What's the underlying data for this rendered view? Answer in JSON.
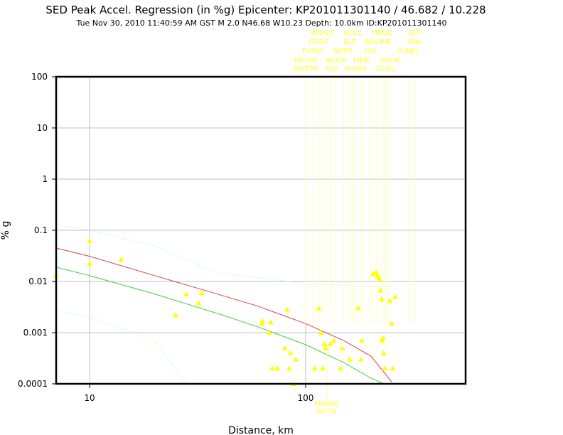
{
  "chart_data": {
    "type": "scatter",
    "title": "SED Peak Accel. Regression (in %g) Epicenter: KP201011301140 / 46.682 / 10.228",
    "subtitle": "Tue Nov 30, 2010 11:40:59 AM GST   M 2.0   N46.68 W10.23   Depth: 10.0km   ID:KP201011301140",
    "xlabel": "Distance, km",
    "ylabel": "% g",
    "x_scale": "log",
    "y_scale": "log",
    "xlim": [
      7,
      550
    ],
    "ylim": [
      0.0001,
      100
    ],
    "x_ticks": [
      "10",
      "100"
    ],
    "y_ticks": [
      "100",
      "10",
      "1",
      "0.1",
      "0.01",
      "0.001",
      "0.0001"
    ],
    "grid": true,
    "colors": {
      "frame": "#000000",
      "grid": "#c0c0c0",
      "points": "#ffff00",
      "station_label": "#ffff33",
      "median_curve": "#e04040",
      "fit_curve": "#40d040",
      "bound_curve": "#b0f0b0"
    },
    "series": [
      {
        "marker": "triangle",
        "points": [
          [
            7,
            0.013
          ],
          [
            10,
            0.062
          ],
          [
            10,
            0.022
          ],
          [
            14,
            0.027
          ],
          [
            25,
            0.0022
          ],
          [
            28,
            0.0057
          ],
          [
            32,
            0.0038
          ],
          [
            33,
            0.006
          ],
          [
            63,
            0.0017
          ],
          [
            63,
            0.0015
          ],
          [
            68,
            0.001
          ],
          [
            69,
            0.0016
          ],
          [
            70,
            0.0002
          ],
          [
            74,
            0.0002
          ],
          [
            80,
            0.0005
          ],
          [
            82,
            0.0028
          ],
          [
            84,
            0.0002
          ],
          [
            85,
            0.0004
          ],
          [
            88,
            0.0001
          ],
          [
            90,
            0.0003
          ],
          [
            110,
            0.0002
          ],
          [
            115,
            0.003
          ],
          [
            118,
            0.001
          ],
          [
            120,
            0.0002
          ],
          [
            122,
            0.0006
          ],
          [
            124,
            0.0005
          ],
          [
            130,
            0.0006
          ],
          [
            135,
            0.0007
          ],
          [
            145,
            0.0002
          ],
          [
            148,
            0.0005
          ],
          [
            160,
            0.0003
          ],
          [
            175,
            0.003
          ],
          [
            180,
            0.0003
          ],
          [
            182,
            0.0007
          ],
          [
            205,
            0.014
          ],
          [
            212,
            0.015
          ],
          [
            215,
            0.013
          ],
          [
            218,
            0.012
          ],
          [
            220,
            0.011
          ],
          [
            222,
            0.0067
          ],
          [
            225,
            0.0045
          ],
          [
            226,
            0.0007
          ],
          [
            228,
            0.0008
          ],
          [
            230,
            0.0004
          ],
          [
            232,
            0.0002
          ],
          [
            245,
            0.0042
          ],
          [
            250,
            0.0015
          ],
          [
            252,
            0.0002
          ],
          [
            260,
            0.005
          ]
        ]
      },
      {
        "name": "median",
        "style": "line",
        "points": [
          [
            7,
            0.045
          ],
          [
            10,
            0.031
          ],
          [
            20,
            0.013
          ],
          [
            40,
            0.0055
          ],
          [
            60,
            0.0033
          ],
          [
            100,
            0.0015
          ],
          [
            150,
            0.0007
          ],
          [
            200,
            0.00035
          ],
          [
            250,
            0.00011
          ]
        ]
      },
      {
        "name": "fit",
        "style": "line",
        "points": [
          [
            7,
            0.019
          ],
          [
            10,
            0.013
          ],
          [
            20,
            0.0057
          ],
          [
            40,
            0.0023
          ],
          [
            60,
            0.0013
          ],
          [
            100,
            0.00058
          ],
          [
            150,
            0.00026
          ],
          [
            200,
            0.00013
          ],
          [
            230,
            0.0001
          ]
        ]
      },
      {
        "name": "upper",
        "style": "dotted",
        "points": [
          [
            7,
            0.13
          ],
          [
            10,
            0.1
          ],
          [
            20,
            0.05
          ],
          [
            40,
            0.014
          ],
          [
            60,
            0.012
          ],
          [
            100,
            0.009
          ],
          [
            200,
            0.008
          ],
          [
            250,
            0.008
          ]
        ]
      },
      {
        "name": "lower",
        "style": "dotted",
        "points": [
          [
            7,
            0.0027
          ],
          [
            10,
            0.002
          ],
          [
            20,
            0.0007
          ],
          [
            28,
            0.0001
          ]
        ]
      }
    ],
    "station_labels_top": [
      {
        "x": 100,
        "rows": [
          "DOETR"
        ]
      },
      {
        "x": 100,
        "rows": [
          "MPSFA"
        ]
      },
      {
        "x": 108,
        "rows": [
          "FUSIO"
        ]
      },
      {
        "x": 115,
        "rows": [
          "OGRP"
        ]
      },
      {
        "x": 120,
        "rows": [
          "BNALP"
        ]
      },
      {
        "x": 132,
        "rows": [
          "RISI"
        ]
      },
      {
        "x": 138,
        "rows": [
          "AGOR"
        ]
      },
      {
        "x": 150,
        "rows": [
          "SIMPL"
        ]
      },
      {
        "x": 160,
        "rows": [
          "SLE"
        ]
      },
      {
        "x": 165,
        "rows": [
          "SULZ"
        ]
      },
      {
        "x": 170,
        "rows": [
          "WIMIS"
        ]
      },
      {
        "x": 182,
        "rows": [
          "MMK"
        ]
      },
      {
        "x": 200,
        "rows": [
          "DIX"
        ]
      },
      {
        "x": 215,
        "rows": [
          "BOURR"
        ]
      },
      {
        "x": 225,
        "rows": [
          "MRGE"
        ]
      },
      {
        "x": 235,
        "rows": [
          "SCOU"
        ]
      },
      {
        "x": 245,
        "rows": [
          "SMUK"
        ]
      },
      {
        "x": 300,
        "rows": [
          "GIMEL"
        ]
      },
      {
        "x": 320,
        "rows": [
          "BNI"
        ]
      },
      {
        "x": 320,
        "rows": [
          "BOI"
        ]
      }
    ],
    "station_labels_bottom": [
      "MUGIO",
      "WTTA"
    ]
  }
}
